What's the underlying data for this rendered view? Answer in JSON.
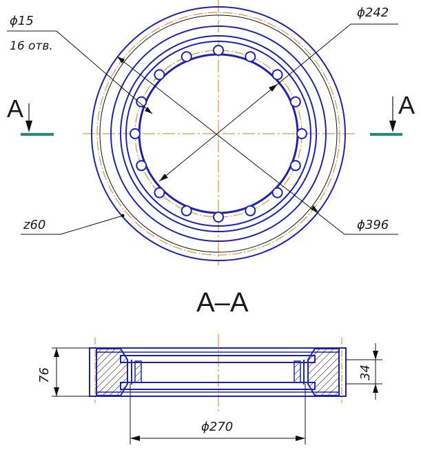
{
  "drawing": {
    "colors": {
      "outline": "#1f22b0",
      "thin": "#111111",
      "center": "#e07a1a",
      "marker": "#1a8f7a"
    },
    "labels": {
      "hole_dia": "ϕ15",
      "hole_count": "16 отв.",
      "bolt_circle": "ϕ242",
      "teeth": "z60",
      "outer_dia": "ϕ396",
      "section_marker": "A",
      "section_title": "А–А",
      "height": "76",
      "groove_height": "34",
      "inner_dia": "ϕ270"
    }
  }
}
